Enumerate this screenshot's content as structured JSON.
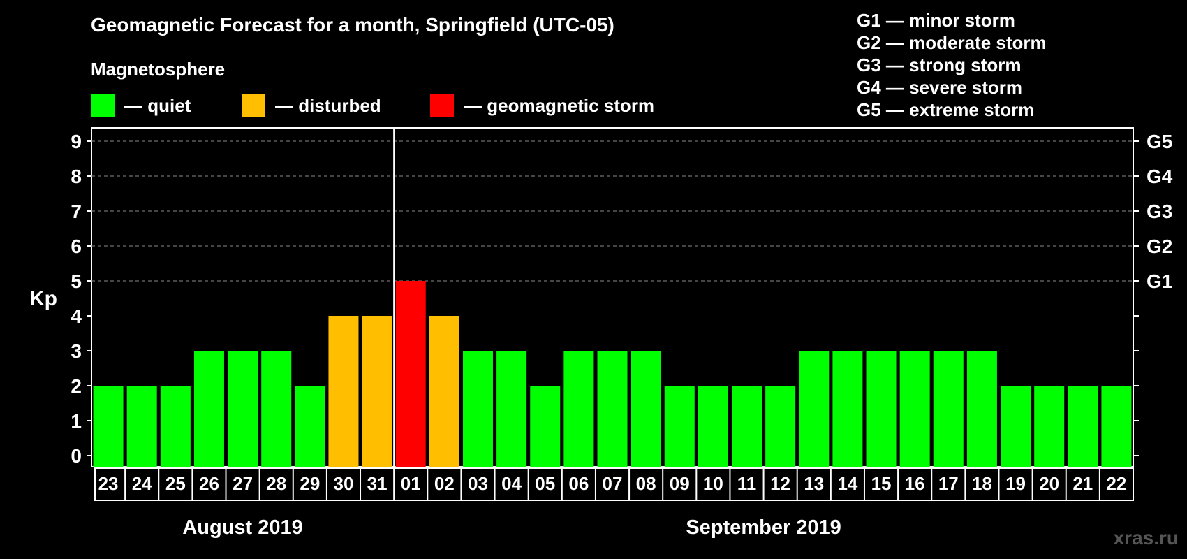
{
  "title": "Geomagnetic Forecast for a month, Springfield (UTC-05)",
  "magnetosphere": {
    "heading": "Magnetosphere",
    "legend": [
      {
        "label": "— quiet",
        "color": "#00ff00"
      },
      {
        "label": "— disturbed",
        "color": "#ffbf00"
      },
      {
        "label": "— geomagnetic storm",
        "color": "#ff0000"
      }
    ]
  },
  "storm_scale": [
    "G1 — minor storm",
    "G2 — moderate storm",
    "G3 — strong storm",
    "G4 — severe storm",
    "G5 — extreme storm"
  ],
  "watermark": "xras.ru",
  "chart_data": {
    "type": "bar",
    "title": "Geomagnetic Forecast for a month, Springfield (UTC-05)",
    "ylabel": "Kp",
    "ylim": [
      0,
      9
    ],
    "yticks": [
      "0",
      "1",
      "2",
      "3",
      "4",
      "5",
      "6",
      "7",
      "8",
      "9"
    ],
    "right_axis": [
      {
        "kp": 5,
        "label": "G1"
      },
      {
        "kp": 6,
        "label": "G2"
      },
      {
        "kp": 7,
        "label": "G3"
      },
      {
        "kp": 8,
        "label": "G4"
      },
      {
        "kp": 9,
        "label": "G5"
      }
    ],
    "categories": [
      "23",
      "24",
      "25",
      "26",
      "27",
      "28",
      "29",
      "30",
      "31",
      "01",
      "02",
      "03",
      "04",
      "05",
      "06",
      "07",
      "08",
      "09",
      "10",
      "11",
      "12",
      "13",
      "14",
      "15",
      "16",
      "17",
      "18",
      "19",
      "20",
      "21",
      "22"
    ],
    "values": [
      2,
      2,
      2,
      3,
      3,
      3,
      2,
      4,
      4,
      5,
      4,
      3,
      3,
      2,
      3,
      3,
      3,
      2,
      2,
      2,
      2,
      3,
      3,
      3,
      3,
      3,
      3,
      2,
      2,
      2,
      2
    ],
    "status": [
      "quiet",
      "quiet",
      "quiet",
      "quiet",
      "quiet",
      "quiet",
      "quiet",
      "disturbed",
      "disturbed",
      "storm",
      "disturbed",
      "quiet",
      "quiet",
      "quiet",
      "quiet",
      "quiet",
      "quiet",
      "quiet",
      "quiet",
      "quiet",
      "quiet",
      "quiet",
      "quiet",
      "quiet",
      "quiet",
      "quiet",
      "quiet",
      "quiet",
      "quiet",
      "quiet",
      "quiet"
    ],
    "status_colors": {
      "quiet": "#00ff00",
      "disturbed": "#ffbf00",
      "storm": "#ff0000"
    },
    "months": [
      {
        "label": "August 2019",
        "first_index": 0,
        "last_index": 8
      },
      {
        "label": "September 2019",
        "first_index": 9,
        "last_index": 30
      }
    ],
    "month_divider_after_index": 8,
    "grid": "dashed from Kp 5 to 9"
  }
}
